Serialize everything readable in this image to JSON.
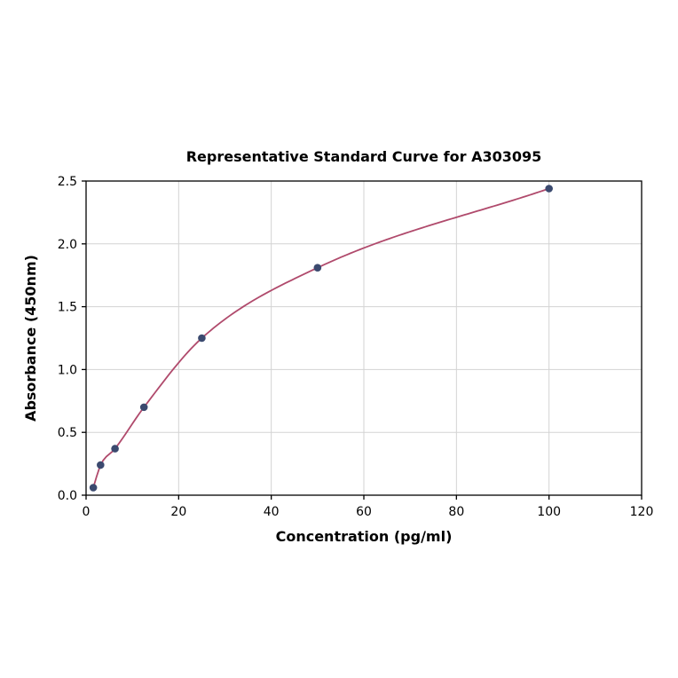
{
  "chart_data": {
    "type": "scatter",
    "title": "Representative Standard Curve for A303095",
    "xlabel": "Concentration (pg/ml)",
    "ylabel": "Absorbance (450nm)",
    "xlim": [
      0,
      120
    ],
    "ylim": [
      0,
      2.5
    ],
    "xticks": [
      0,
      20,
      40,
      60,
      80,
      100,
      120
    ],
    "yticks": [
      0,
      0.5,
      1,
      1.5,
      2,
      2.5
    ],
    "grid": true,
    "legend": "none",
    "curve_style": "smooth monotone fit through points",
    "points": [
      {
        "x": 1.56,
        "y": 0.06
      },
      {
        "x": 3.125,
        "y": 0.24
      },
      {
        "x": 6.25,
        "y": 0.37
      },
      {
        "x": 12.5,
        "y": 0.7
      },
      {
        "x": 25,
        "y": 1.25
      },
      {
        "x": 50,
        "y": 1.81
      },
      {
        "x": 100,
        "y": 2.44
      }
    ],
    "colors": {
      "curve": "#b04a6c",
      "point": "#3b4a6f",
      "grid": "#d3d3d3",
      "axis": "#000000",
      "background": "#ffffff"
    }
  }
}
